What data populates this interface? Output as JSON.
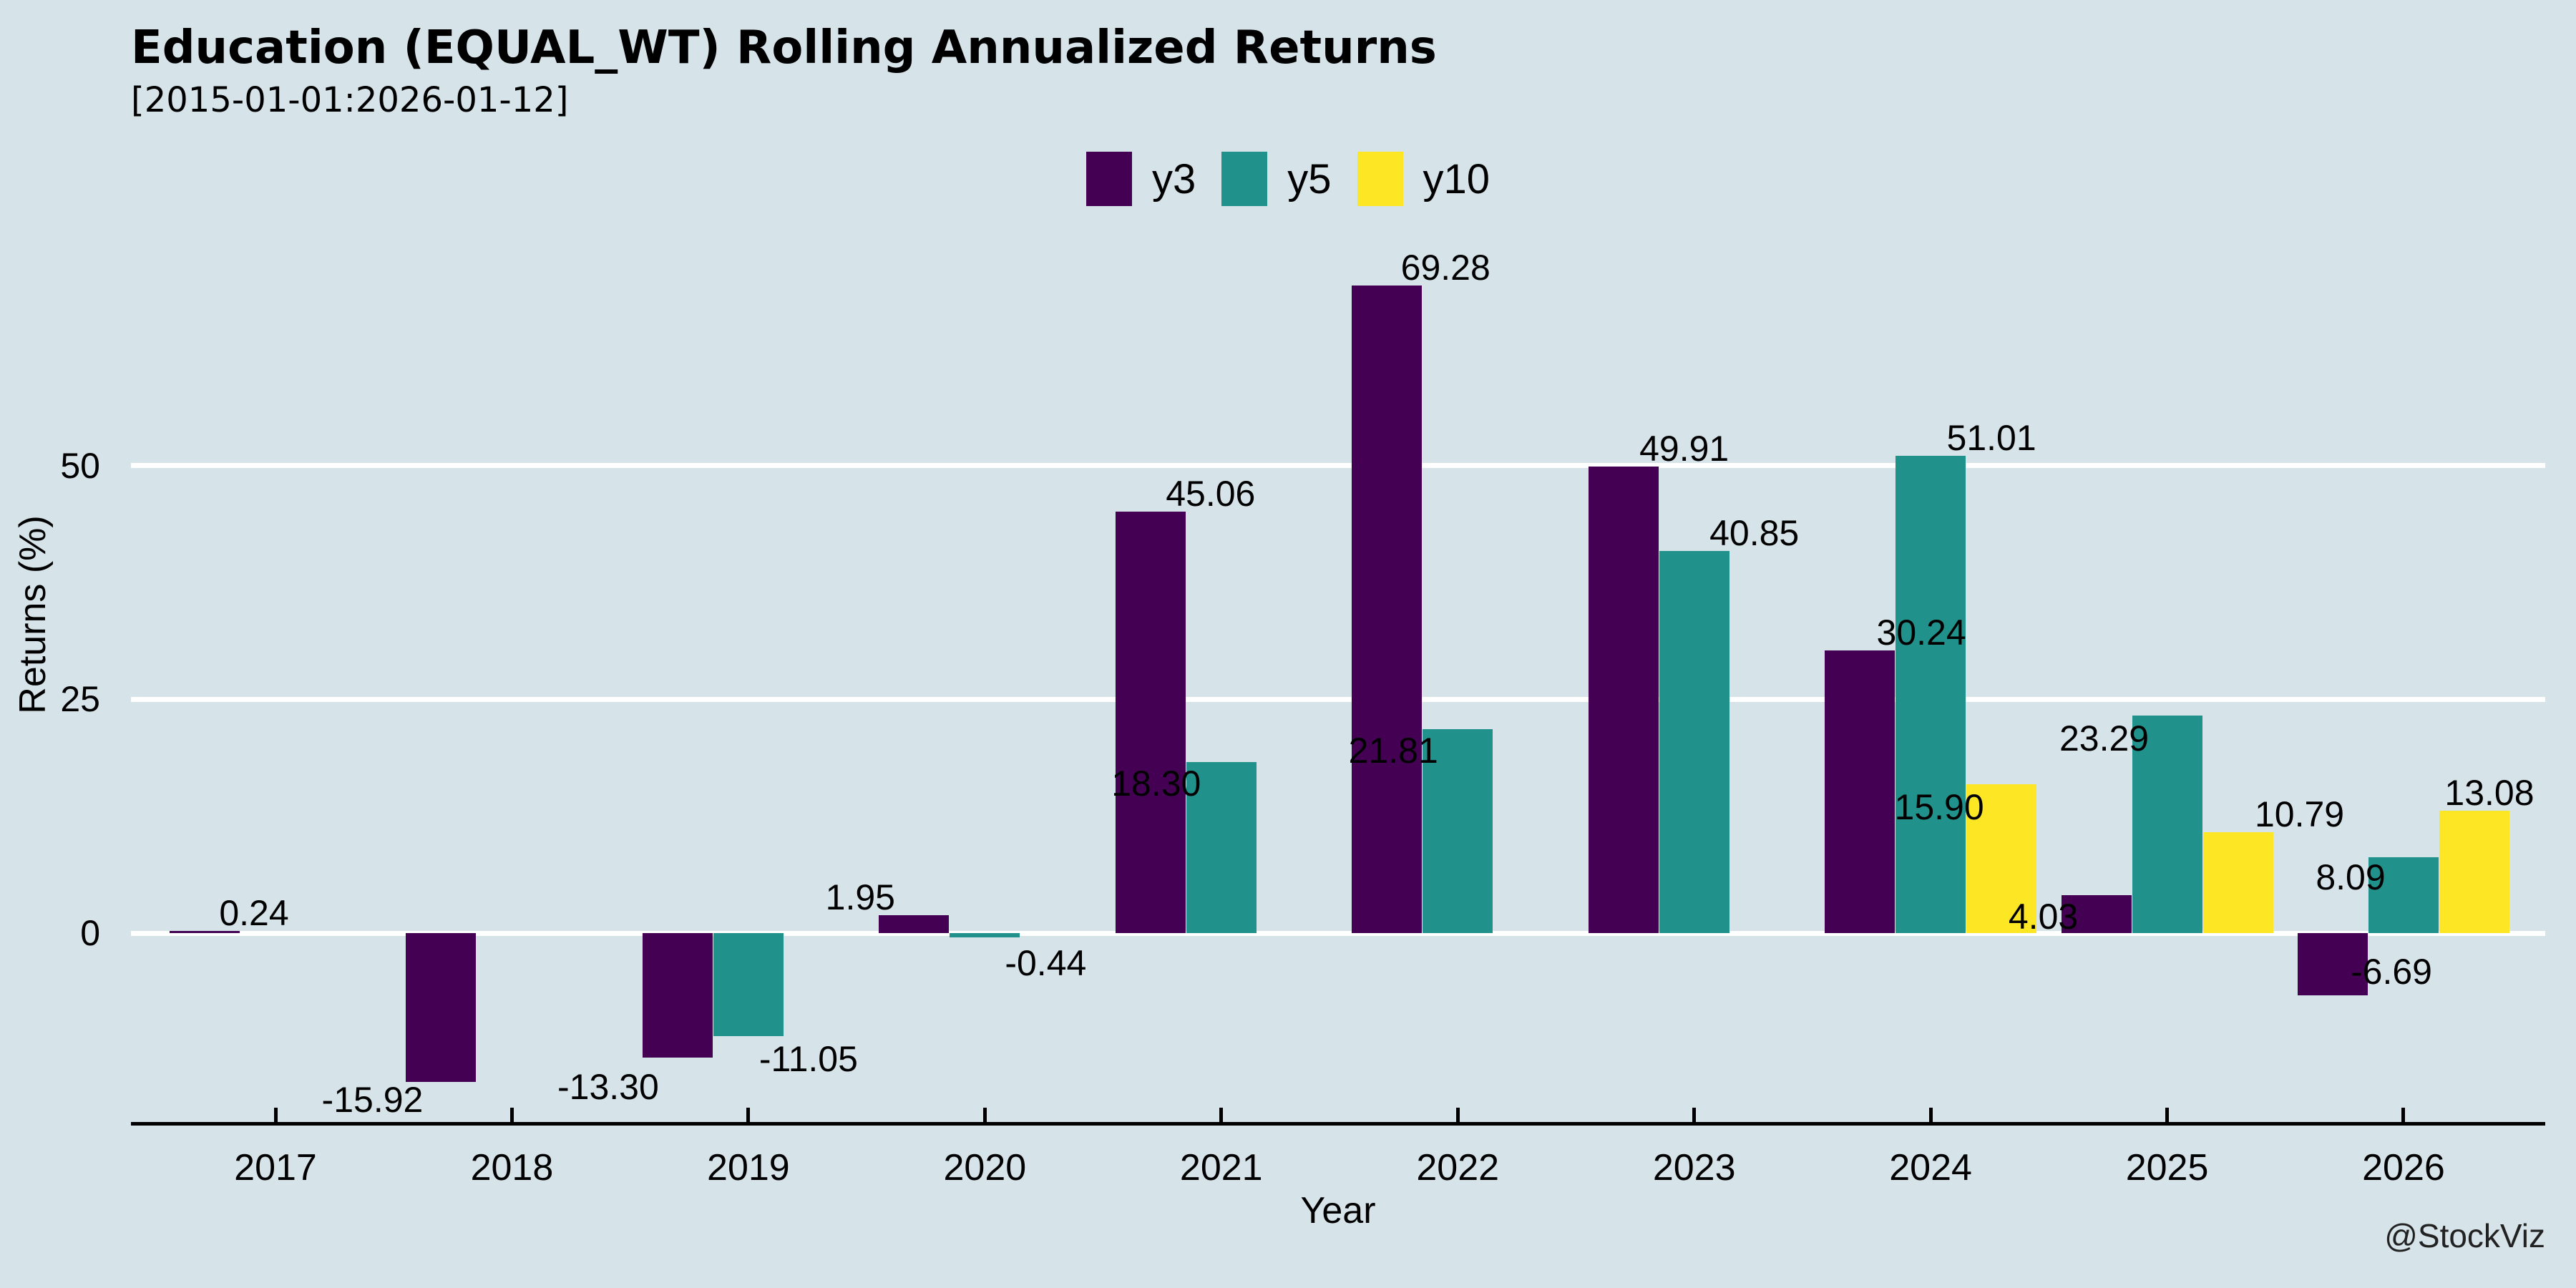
{
  "watermark": "@StockViz",
  "colors": {
    "background": "#d6e3e9",
    "grid": "#ffffff",
    "axis": "#000000",
    "text": "#000000",
    "watermark": "#222222",
    "y3": "#440154",
    "y5": "#21918c",
    "y10": "#fde725"
  },
  "chart_data": {
    "type": "bar",
    "title": "Education (EQUAL_WT) Rolling Annualized Returns",
    "subtitle": "[2015-01-01:2026-01-12]",
    "xlabel": "Year",
    "ylabel": "Returns (%)",
    "categories": [
      "2017",
      "2018",
      "2019",
      "2020",
      "2021",
      "2022",
      "2023",
      "2024",
      "2025",
      "2026"
    ],
    "yticks": [
      0,
      25,
      50
    ],
    "ylim": [
      -20.2,
      76.9
    ],
    "grid": "horizontal-white",
    "legend": {
      "position": "top-center",
      "entries": [
        {
          "label": "y3",
          "color": "#440154"
        },
        {
          "label": "y5",
          "color": "#21918c"
        },
        {
          "label": "y10",
          "color": "#fde725"
        }
      ]
    },
    "series": [
      {
        "name": "y3",
        "color": "#440154",
        "values": [
          0.24,
          -15.92,
          -13.3,
          1.95,
          45.06,
          69.28,
          49.91,
          30.24,
          4.03,
          -6.69
        ]
      },
      {
        "name": "y5",
        "color": "#21918c",
        "values": [
          null,
          null,
          -11.05,
          -0.44,
          18.3,
          21.81,
          40.85,
          51.01,
          23.29,
          8.09
        ]
      },
      {
        "name": "y10",
        "color": "#fde725",
        "values": [
          null,
          null,
          null,
          null,
          null,
          null,
          null,
          15.9,
          10.79,
          13.08
        ]
      }
    ],
    "label_offsets": [
      [
        [
          69,
          -25
        ],
        [
          -96,
          25
        ],
        [
          -97,
          41
        ],
        [
          -75,
          -25
        ],
        [
          84,
          -25
        ],
        [
          82,
          -25
        ],
        [
          85,
          -25
        ],
        [
          86,
          -25
        ],
        [
          -74,
          30
        ],
        [
          82,
          -33
        ]
      ],
      [
        null,
        null,
        [
          84,
          32
        ],
        [
          85,
          36
        ],
        [
          -91,
          30
        ],
        [
          -90,
          30
        ],
        [
          84,
          -25
        ],
        [
          85,
          -25
        ],
        [
          -88,
          32
        ],
        [
          -74,
          28
        ]
      ],
      [
        null,
        null,
        null,
        null,
        null,
        null,
        null,
        [
          -87,
          32
        ],
        [
          86,
          -25
        ],
        [
          21,
          -25
        ]
      ]
    ]
  }
}
